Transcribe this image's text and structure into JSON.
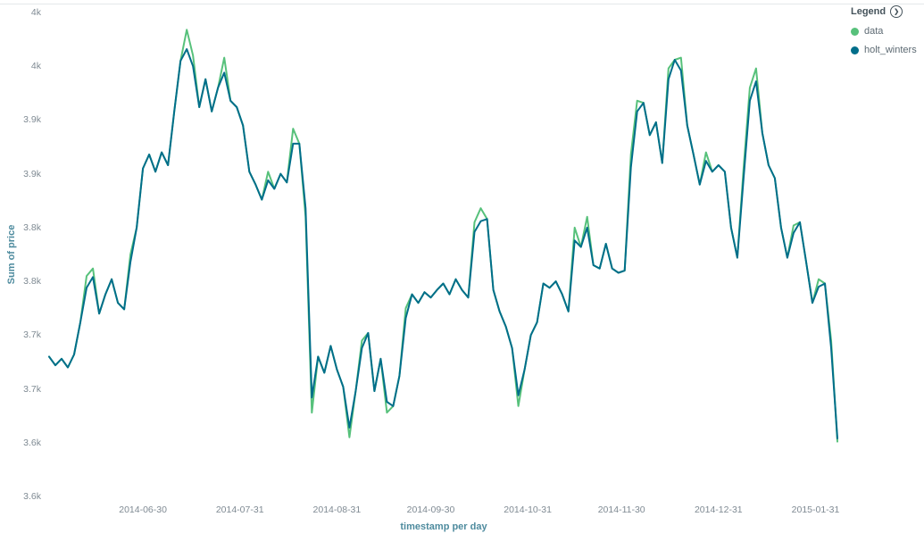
{
  "legend": {
    "title": "Legend"
  },
  "chart_data": {
    "type": "line",
    "title": "",
    "xlabel": "timestamp per day",
    "ylabel": "Sum of price",
    "grid": false,
    "legend_position": "top-right",
    "ylim": [
      3550,
      4000
    ],
    "y_ticks": [
      {
        "value": 4000,
        "label": "4k"
      },
      {
        "value": 3950,
        "label": "4k"
      },
      {
        "value": 3900,
        "label": "3.9k"
      },
      {
        "value": 3850,
        "label": "3.9k"
      },
      {
        "value": 3800,
        "label": "3.8k"
      },
      {
        "value": 3750,
        "label": "3.8k"
      },
      {
        "value": 3700,
        "label": "3.7k"
      },
      {
        "value": 3650,
        "label": "3.7k"
      },
      {
        "value": 3600,
        "label": "3.6k"
      },
      {
        "value": 3550,
        "label": "3.6k"
      }
    ],
    "x_start_date": "2014-05-31",
    "x_interval_days": 2,
    "x_tick_labels": [
      "2014-06-30",
      "2014-07-31",
      "2014-08-31",
      "2014-09-30",
      "2014-10-31",
      "2014-11-30",
      "2014-12-31",
      "2015-01-31"
    ],
    "series": [
      {
        "name": "data",
        "color": "#57c17b",
        "values": [
          3680,
          3672,
          3678,
          3670,
          3682,
          3712,
          3755,
          3762,
          3720,
          3738,
          3752,
          3730,
          3724,
          3775,
          3800,
          3855,
          3868,
          3852,
          3870,
          3858,
          3908,
          3955,
          3984,
          3960,
          3912,
          3938,
          3908,
          3930,
          3958,
          3918,
          3912,
          3895,
          3852,
          3840,
          3826,
          3852,
          3836,
          3850,
          3842,
          3892,
          3878,
          3810,
          3628,
          3680,
          3665,
          3690,
          3668,
          3652,
          3605,
          3648,
          3695,
          3702,
          3648,
          3678,
          3628,
          3634,
          3662,
          3725,
          3738,
          3730,
          3740,
          3735,
          3742,
          3748,
          3738,
          3752,
          3742,
          3735,
          3805,
          3818,
          3808,
          3742,
          3722,
          3708,
          3688,
          3634,
          3668,
          3700,
          3712,
          3748,
          3744,
          3750,
          3738,
          3722,
          3800,
          3782,
          3810,
          3765,
          3762,
          3785,
          3762,
          3758,
          3760,
          3868,
          3918,
          3916,
          3886,
          3898,
          3860,
          3948,
          3956,
          3958,
          3895,
          3868,
          3840,
          3870,
          3852,
          3858,
          3852,
          3800,
          3772,
          3855,
          3930,
          3948,
          3888,
          3858,
          3846,
          3800,
          3772,
          3802,
          3805,
          3768,
          3730,
          3752,
          3748,
          3695,
          3601
        ]
      },
      {
        "name": "holt_winters",
        "color": "#006e8a",
        "values": [
          3680,
          3672,
          3678,
          3670,
          3682,
          3712,
          3744,
          3754,
          3720,
          3738,
          3752,
          3730,
          3724,
          3768,
          3800,
          3855,
          3868,
          3852,
          3870,
          3858,
          3908,
          3955,
          3966,
          3950,
          3912,
          3938,
          3908,
          3930,
          3944,
          3918,
          3912,
          3895,
          3852,
          3840,
          3826,
          3844,
          3836,
          3850,
          3842,
          3878,
          3878,
          3818,
          3642,
          3680,
          3665,
          3690,
          3668,
          3652,
          3614,
          3648,
          3688,
          3702,
          3648,
          3678,
          3638,
          3634,
          3662,
          3716,
          3738,
          3730,
          3740,
          3735,
          3742,
          3748,
          3738,
          3752,
          3742,
          3735,
          3796,
          3806,
          3808,
          3742,
          3722,
          3708,
          3688,
          3644,
          3668,
          3700,
          3712,
          3748,
          3744,
          3750,
          3738,
          3722,
          3788,
          3782,
          3800,
          3765,
          3762,
          3785,
          3762,
          3758,
          3760,
          3856,
          3908,
          3916,
          3886,
          3898,
          3860,
          3938,
          3956,
          3946,
          3895,
          3868,
          3840,
          3862,
          3852,
          3858,
          3852,
          3800,
          3772,
          3846,
          3918,
          3936,
          3888,
          3858,
          3846,
          3800,
          3772,
          3795,
          3805,
          3768,
          3730,
          3745,
          3748,
          3688,
          3604
        ]
      }
    ]
  }
}
